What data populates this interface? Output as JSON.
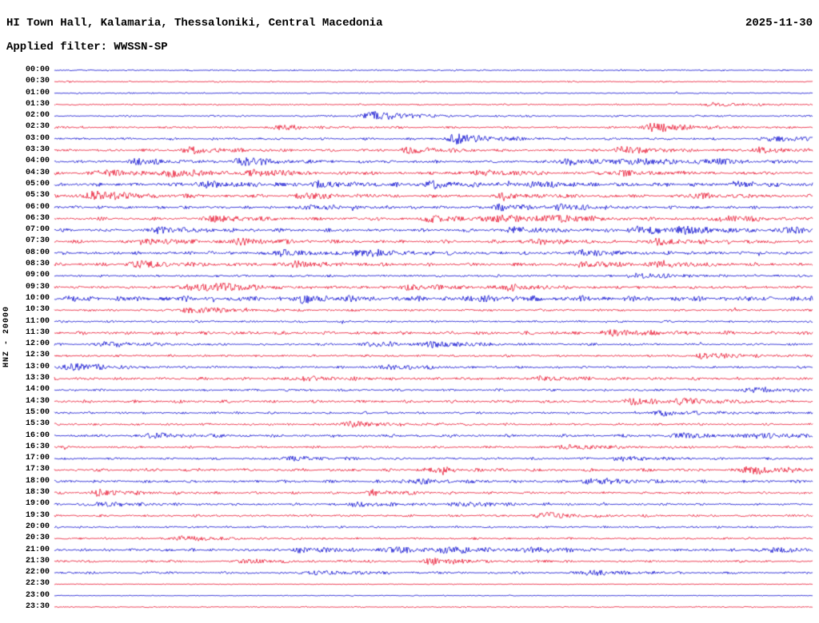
{
  "header": {
    "title": "HI Town Hall, Kalamaria, Thessaloniki, Central Macedonia",
    "date": "2025-11-30",
    "filter": "Applied filter: WWSSN-SP"
  },
  "axis": {
    "channel_label": "HNZ - 20000"
  },
  "colors": {
    "blue": "#0b0bcf",
    "red": "#e8112d",
    "text": "#000000",
    "background": "#ffffff"
  },
  "chart_data": {
    "type": "line",
    "subtype": "helicorder",
    "title": "HI Town Hall, Kalamaria, Thessaloniki, Central Macedonia",
    "date": "2025-11-30",
    "filter": "WWSSN-SP",
    "channel": "HNZ",
    "gain": "20000",
    "row_duration_minutes": 30,
    "x_axis": {
      "start": "00:00",
      "end": "23:30",
      "step_minutes": 30
    },
    "legend": "alternating blue/red traces per 30-minute segment",
    "rows": [
      {
        "label": "00:00",
        "color": "blue",
        "amp": 0.28,
        "bursts": []
      },
      {
        "label": "00:30",
        "color": "red",
        "amp": 0.24,
        "bursts": []
      },
      {
        "label": "01:00",
        "color": "blue",
        "amp": 0.24,
        "bursts": []
      },
      {
        "label": "01:30",
        "color": "red",
        "amp": 0.28,
        "bursts": [
          [
            0.87,
            1.2
          ]
        ]
      },
      {
        "label": "02:00",
        "color": "blue",
        "amp": 0.32,
        "bursts": [
          [
            0.42,
            3.4
          ]
        ]
      },
      {
        "label": "02:30",
        "color": "red",
        "amp": 0.38,
        "bursts": [
          [
            0.79,
            2.8
          ],
          [
            0.3,
            1.2
          ]
        ]
      },
      {
        "label": "03:00",
        "color": "blue",
        "amp": 0.42,
        "bursts": [
          [
            0.53,
            3.0
          ],
          [
            0.95,
            1.6
          ]
        ]
      },
      {
        "label": "03:30",
        "color": "red",
        "amp": 0.48,
        "bursts": [
          [
            0.18,
            1.8
          ],
          [
            0.47,
            1.6
          ],
          [
            0.75,
            2.0
          ],
          [
            0.93,
            1.4
          ]
        ]
      },
      {
        "label": "04:00",
        "color": "blue",
        "amp": 0.52,
        "bursts": [
          [
            0.11,
            1.6
          ],
          [
            0.25,
            2.2
          ],
          [
            0.68,
            1.8
          ],
          [
            0.76,
            1.7
          ],
          [
            0.86,
            1.4
          ]
        ]
      },
      {
        "label": "04:30",
        "color": "red",
        "amp": 0.58,
        "bursts": [
          [
            0.06,
            1.4
          ],
          [
            0.15,
            2.0
          ],
          [
            0.26,
            1.6
          ],
          [
            0.56,
            1.6
          ],
          [
            0.75,
            1.4
          ]
        ]
      },
      {
        "label": "05:00",
        "color": "blue",
        "amp": 0.62,
        "bursts": [
          [
            0.2,
            1.8
          ],
          [
            0.35,
            1.6
          ],
          [
            0.5,
            1.7
          ],
          [
            0.63,
            1.5
          ],
          [
            0.9,
            1.3
          ]
        ]
      },
      {
        "label": "05:30",
        "color": "red",
        "amp": 0.58,
        "bursts": [
          [
            0.055,
            3.0
          ],
          [
            0.33,
            1.4
          ],
          [
            0.6,
            1.3
          ],
          [
            0.85,
            1.2
          ]
        ]
      },
      {
        "label": "06:00",
        "color": "blue",
        "amp": 0.52,
        "bursts": [
          [
            0.33,
            1.6
          ],
          [
            0.59,
            1.5
          ],
          [
            0.67,
            1.3
          ]
        ]
      },
      {
        "label": "06:30",
        "color": "red",
        "amp": 0.58,
        "bursts": [
          [
            0.21,
            2.0
          ],
          [
            0.5,
            1.6
          ],
          [
            0.59,
            2.0
          ],
          [
            0.66,
            1.6
          ],
          [
            0.88,
            1.6
          ]
        ]
      },
      {
        "label": "07:00",
        "color": "blue",
        "amp": 0.62,
        "bursts": [
          [
            0.14,
            1.6
          ],
          [
            0.61,
            1.6
          ],
          [
            0.77,
            2.2
          ],
          [
            0.83,
            1.4
          ],
          [
            0.97,
            1.6
          ]
        ]
      },
      {
        "label": "07:30",
        "color": "red",
        "amp": 0.58,
        "bursts": [
          [
            0.12,
            1.6
          ],
          [
            0.25,
            1.4
          ],
          [
            0.63,
            1.3
          ],
          [
            0.8,
            1.4
          ]
        ]
      },
      {
        "label": "08:00",
        "color": "blue",
        "amp": 0.58,
        "bursts": [
          [
            0.3,
            1.6
          ],
          [
            0.41,
            1.8
          ],
          [
            0.7,
            1.4
          ]
        ]
      },
      {
        "label": "08:30",
        "color": "red",
        "amp": 0.58,
        "bursts": [
          [
            0.11,
            1.8
          ],
          [
            0.32,
            1.6
          ],
          [
            0.7,
            1.6
          ],
          [
            0.8,
            1.6
          ]
        ]
      },
      {
        "label": "09:00",
        "color": "blue",
        "amp": 0.42,
        "bursts": [
          [
            0.77,
            1.4
          ]
        ]
      },
      {
        "label": "09:30",
        "color": "red",
        "amp": 0.52,
        "bursts": [
          [
            0.18,
            1.8
          ],
          [
            0.22,
            1.6
          ],
          [
            0.47,
            1.4
          ],
          [
            0.6,
            1.6
          ]
        ]
      },
      {
        "label": "10:00",
        "color": "blue",
        "amp": 0.95,
        "bursts": [
          [
            0.33,
            1.4
          ],
          [
            0.56,
            1.2
          ]
        ]
      },
      {
        "label": "10:30",
        "color": "red",
        "amp": 0.42,
        "bursts": [
          [
            0.18,
            2.0
          ]
        ]
      },
      {
        "label": "11:00",
        "color": "blue",
        "amp": 0.38,
        "bursts": []
      },
      {
        "label": "11:30",
        "color": "red",
        "amp": 0.62,
        "bursts": [
          [
            0.74,
            1.6
          ]
        ]
      },
      {
        "label": "12:00",
        "color": "blue",
        "amp": 0.42,
        "bursts": [
          [
            0.07,
            1.4
          ],
          [
            0.42,
            1.3
          ],
          [
            0.5,
            1.6
          ]
        ]
      },
      {
        "label": "12:30",
        "color": "red",
        "amp": 0.42,
        "bursts": [
          [
            0.86,
            1.6
          ]
        ]
      },
      {
        "label": "13:00",
        "color": "blue",
        "amp": 0.42,
        "bursts": [
          [
            0.025,
            2.2
          ],
          [
            0.44,
            1.4
          ]
        ]
      },
      {
        "label": "13:30",
        "color": "red",
        "amp": 0.52,
        "bursts": [
          [
            0.33,
            1.3
          ],
          [
            0.64,
            1.2
          ]
        ]
      },
      {
        "label": "14:00",
        "color": "blue",
        "amp": 0.42,
        "bursts": [
          [
            0.92,
            1.4
          ]
        ]
      },
      {
        "label": "14:30",
        "color": "red",
        "amp": 0.52,
        "bursts": [
          [
            0.76,
            1.6
          ],
          [
            0.83,
            1.4
          ]
        ]
      },
      {
        "label": "15:00",
        "color": "blue",
        "amp": 0.42,
        "bursts": [
          [
            0.8,
            1.6
          ]
        ]
      },
      {
        "label": "15:30",
        "color": "red",
        "amp": 0.42,
        "bursts": [
          [
            0.39,
            1.6
          ]
        ]
      },
      {
        "label": "16:00",
        "color": "blue",
        "amp": 0.52,
        "bursts": [
          [
            0.13,
            1.4
          ],
          [
            0.82,
            1.4
          ],
          [
            0.93,
            1.6
          ]
        ]
      },
      {
        "label": "16:30",
        "color": "red",
        "amp": 0.42,
        "bursts": [
          [
            0.68,
            1.4
          ]
        ]
      },
      {
        "label": "17:00",
        "color": "blue",
        "amp": 0.42,
        "bursts": [
          [
            0.31,
            1.3
          ],
          [
            0.75,
            1.3
          ]
        ]
      },
      {
        "label": "17:30",
        "color": "red",
        "amp": 0.52,
        "bursts": [
          [
            0.5,
            1.3
          ],
          [
            0.92,
            2.2
          ]
        ]
      },
      {
        "label": "18:00",
        "color": "blue",
        "amp": 0.52,
        "bursts": [
          [
            0.47,
            1.3
          ],
          [
            0.71,
            1.8
          ]
        ]
      },
      {
        "label": "18:30",
        "color": "red",
        "amp": 0.42,
        "bursts": [
          [
            0.06,
            1.6
          ],
          [
            0.42,
            1.4
          ]
        ]
      },
      {
        "label": "19:00",
        "color": "blue",
        "amp": 0.42,
        "bursts": [
          [
            0.06,
            1.4
          ],
          [
            0.4,
            1.4
          ],
          [
            0.54,
            1.3
          ]
        ]
      },
      {
        "label": "19:30",
        "color": "red",
        "amp": 0.42,
        "bursts": [
          [
            0.645,
            1.8
          ]
        ]
      },
      {
        "label": "20:00",
        "color": "blue",
        "amp": 0.38,
        "bursts": []
      },
      {
        "label": "20:30",
        "color": "red",
        "amp": 0.38,
        "bursts": [
          [
            0.17,
            1.4
          ]
        ]
      },
      {
        "label": "21:00",
        "color": "blue",
        "amp": 0.52,
        "bursts": [
          [
            0.33,
            1.6
          ],
          [
            0.45,
            1.6
          ],
          [
            0.52,
            1.4
          ],
          [
            0.63,
            1.4
          ],
          [
            0.95,
            1.3
          ]
        ]
      },
      {
        "label": "21:30",
        "color": "red",
        "amp": 0.42,
        "bursts": [
          [
            0.25,
            1.2
          ],
          [
            0.5,
            1.8
          ]
        ]
      },
      {
        "label": "22:00",
        "color": "blue",
        "amp": 0.42,
        "bursts": [
          [
            0.35,
            1.3
          ],
          [
            0.71,
            1.6
          ]
        ]
      },
      {
        "label": "22:30",
        "color": "red",
        "amp": 0.18,
        "bursts": []
      },
      {
        "label": "23:00",
        "color": "blue",
        "amp": 0.18,
        "bursts": []
      },
      {
        "label": "23:30",
        "color": "red",
        "amp": 0.22,
        "bursts": []
      }
    ]
  }
}
